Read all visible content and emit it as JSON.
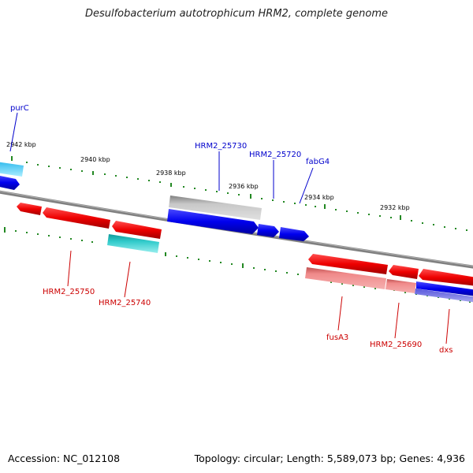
{
  "title": "Desulfobacterium autotrophicum HRM2, complete genome",
  "footer": {
    "accession": "Accession: NC_012108",
    "summary": "Topology: circular; Length: 5,589,073 bp; Genes: 4,936"
  },
  "scale_labels": [
    "2942 kbp",
    "2940 kbp",
    "2938 kbp",
    "2936 kbp",
    "2934 kbp",
    "2932 kbp"
  ],
  "gene_labels_top": [
    "purC",
    "HRM2_25730",
    "HRM2_25720",
    "fabG4"
  ],
  "gene_labels_bottom": [
    "HRM2_25750",
    "HRM2_25740",
    "fusA3",
    "HRM2_25690",
    "dxs"
  ],
  "colors": {
    "backbone": "#808080",
    "forward_gene": "#0000ee",
    "reverse_gene": "#ee0000",
    "rna": "#22bbbb",
    "tick": "#228822",
    "label_top": "#0000cc",
    "label_bottom": "#cc0000"
  }
}
